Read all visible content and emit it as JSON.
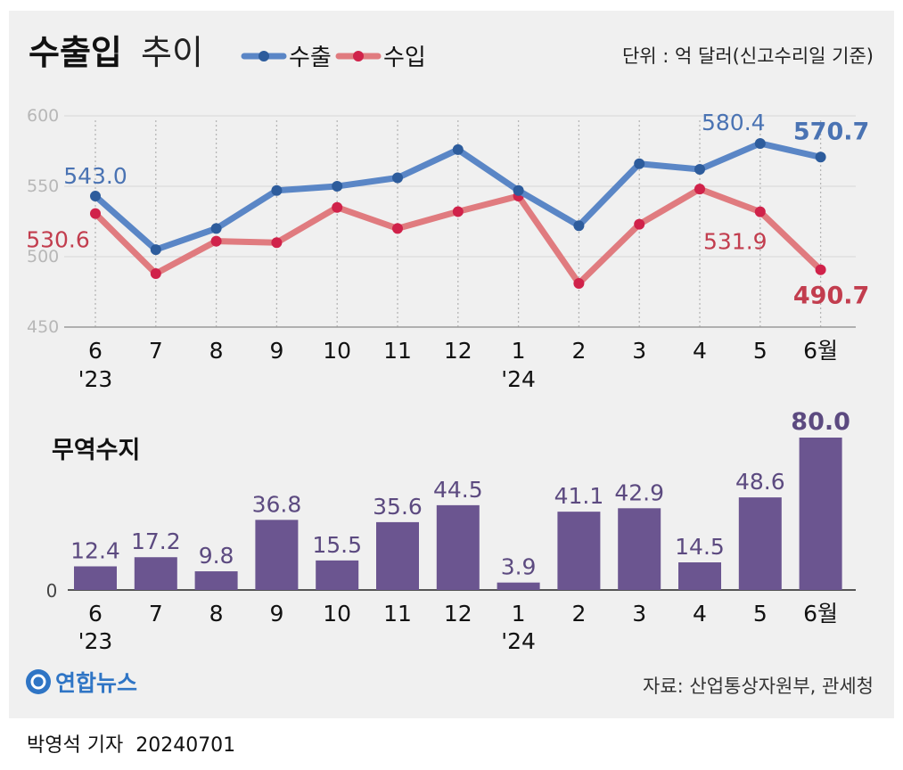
{
  "header": {
    "title_bold": "수출입",
    "title_light": "추이",
    "unit": "단위 : 억 달러(신고수리일 기준)"
  },
  "colors": {
    "export": "#5a86c6",
    "export_dot": "#2d5c9c",
    "import": "#e07b7f",
    "import_dot": "#d0224a",
    "bar": "#6b5590",
    "label_blue": "#4a73b3",
    "label_red": "#c23d4e",
    "bar_label": "#5c4a80"
  },
  "chart_data": [
    {
      "type": "line",
      "title": "수출입 추이",
      "categories": [
        "6",
        "7",
        "8",
        "9",
        "10",
        "11",
        "12",
        "1",
        "2",
        "3",
        "4",
        "5",
        "6월"
      ],
      "year_labels": [
        {
          "index": 0,
          "text": "'23"
        },
        {
          "index": 7,
          "text": "'24"
        }
      ],
      "ylim": [
        450,
        600
      ],
      "yticks": [
        600,
        550,
        500,
        450
      ],
      "legend": "top-left",
      "series": [
        {
          "name": "수출",
          "values": [
            543.0,
            505,
            520,
            547,
            550,
            556,
            576,
            547,
            522,
            566,
            562,
            580.4,
            570.7
          ],
          "labels": [
            {
              "index": 0,
              "text": "543.0"
            },
            {
              "index": 11,
              "text": "580.4"
            },
            {
              "index": 12,
              "text": "570.7",
              "bold": true
            }
          ]
        },
        {
          "name": "수입",
          "values": [
            530.6,
            488,
            511,
            510,
            535,
            520,
            532,
            543,
            481,
            523,
            548,
            531.9,
            490.7
          ],
          "labels": [
            {
              "index": 0,
              "text": "530.6"
            },
            {
              "index": 11,
              "text": "531.9"
            },
            {
              "index": 12,
              "text": "490.7",
              "bold": true
            }
          ]
        }
      ]
    },
    {
      "type": "bar",
      "title": "무역수지",
      "categories": [
        "6",
        "7",
        "8",
        "9",
        "10",
        "11",
        "12",
        "1",
        "2",
        "3",
        "4",
        "5",
        "6월"
      ],
      "year_labels": [
        {
          "index": 0,
          "text": "'23"
        },
        {
          "index": 7,
          "text": "'24"
        }
      ],
      "values": [
        12.4,
        17.2,
        9.8,
        36.8,
        15.5,
        35.6,
        44.5,
        3.9,
        41.1,
        42.9,
        14.5,
        48.6,
        80.0
      ],
      "value_labels": [
        "12.4",
        "17.2",
        "9.8",
        "36.8",
        "15.5",
        "35.6",
        "44.5",
        "3.9",
        "41.1",
        "42.9",
        "14.5",
        "48.6",
        "80.0"
      ],
      "zero_label": "0",
      "ylim": [
        0,
        80
      ]
    }
  ],
  "logo": {
    "text": "연합뉴스"
  },
  "source": "자료: 산업통상자원부, 관세청",
  "footer": {
    "reporter": "박영석 기자",
    "date": "20240701"
  }
}
